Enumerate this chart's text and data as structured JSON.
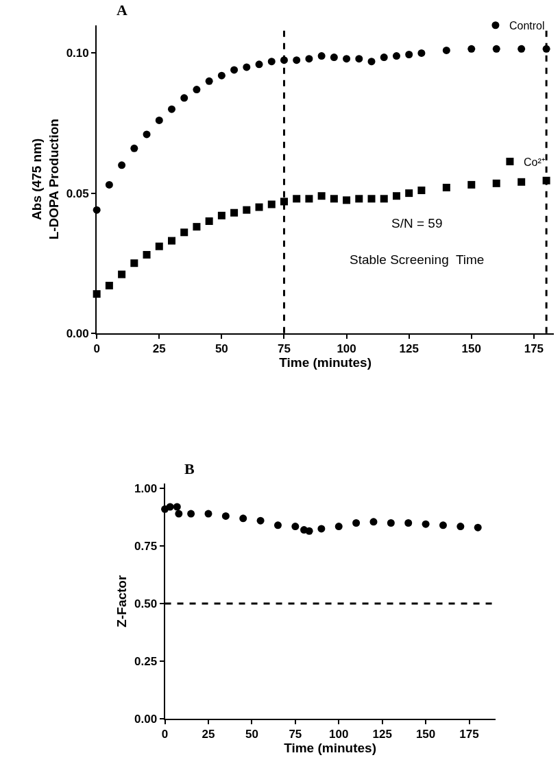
{
  "chart_data": [
    {
      "type": "scatter",
      "title": "A",
      "xlabel": "Time (minutes)",
      "ylabel": "Abs (475 nm)\nL-DOPA Production",
      "xlim": [
        0,
        183
      ],
      "xticks": [
        0,
        25,
        50,
        75,
        100,
        125,
        150,
        175
      ],
      "ylim": [
        0,
        0.11
      ],
      "yticks": [
        {
          "value": 0,
          "label": "0.00"
        },
        {
          "value": 0.05,
          "label": "0.05"
        },
        {
          "value": 0.1,
          "label": "0.10"
        }
      ],
      "legend": "top right",
      "ref_lines": [
        {
          "axis": "x",
          "value": 75,
          "line_style": "dashed",
          "color": "#000000"
        },
        {
          "axis": "x",
          "value": 180,
          "line_style": "dashed",
          "color": "#000000"
        }
      ],
      "annotations": [
        "S/N = 59",
        "Stable Screening  Time"
      ],
      "x": [
        0,
        5,
        10,
        15,
        20,
        25,
        30,
        35,
        40,
        45,
        50,
        55,
        60,
        65,
        70,
        75,
        80,
        85,
        90,
        95,
        100,
        105,
        110,
        115,
        120,
        125,
        130,
        140,
        150,
        160,
        170,
        180
      ],
      "series": [
        {
          "name": "Control",
          "color": "#000000",
          "marker": "circle",
          "values": [
            0.044,
            0.053,
            0.06,
            0.066,
            0.071,
            0.076,
            0.08,
            0.084,
            0.087,
            0.09,
            0.092,
            0.094,
            0.095,
            0.096,
            0.097,
            0.0975,
            0.0975,
            0.098,
            0.099,
            0.0985,
            0.098,
            0.098,
            0.097,
            0.0985,
            0.099,
            0.0995,
            0.1,
            0.101,
            0.1015,
            0.1015,
            0.1015,
            0.1015
          ]
        },
        {
          "name": "Co²⁺",
          "color": "#000000",
          "marker": "square",
          "values": [
            0.014,
            0.017,
            0.021,
            0.025,
            0.028,
            0.031,
            0.033,
            0.036,
            0.038,
            0.04,
            0.042,
            0.043,
            0.044,
            0.045,
            0.046,
            0.047,
            0.048,
            0.048,
            0.049,
            0.048,
            0.0475,
            0.048,
            0.048,
            0.048,
            0.049,
            0.05,
            0.051,
            0.052,
            0.053,
            0.0535,
            0.054,
            0.0545
          ]
        }
      ]
    },
    {
      "type": "scatter",
      "title": "B",
      "xlabel": "Time (minutes)",
      "ylabel": "Z-Factor",
      "xlim": [
        0,
        190
      ],
      "xticks": [
        0,
        25,
        50,
        75,
        100,
        125,
        150,
        175
      ],
      "ylim": [
        0,
        1.02
      ],
      "yticks": [
        {
          "value": 0,
          "label": "0.00"
        },
        {
          "value": 0.25,
          "label": "0.25"
        },
        {
          "value": 0.5,
          "label": "0.50"
        },
        {
          "value": 0.75,
          "label": "0.75"
        },
        {
          "value": 1,
          "label": "1.00"
        }
      ],
      "legend": false,
      "ref_lines": [
        {
          "axis": "y",
          "value": 0.5,
          "line_style": "dashed",
          "color": "#000000"
        }
      ],
      "x": [
        0,
        3,
        7,
        8,
        15,
        25,
        35,
        45,
        55,
        65,
        75,
        80,
        83,
        90,
        100,
        110,
        120,
        130,
        140,
        150,
        160,
        170,
        180
      ],
      "series": [
        {
          "color": "#000000",
          "marker": "circle",
          "values": [
            0.91,
            0.92,
            0.92,
            0.89,
            0.89,
            0.89,
            0.88,
            0.87,
            0.86,
            0.84,
            0.835,
            0.82,
            0.815,
            0.825,
            0.835,
            0.85,
            0.855,
            0.85,
            0.85,
            0.845,
            0.84,
            0.835,
            0.83
          ]
        }
      ]
    }
  ]
}
